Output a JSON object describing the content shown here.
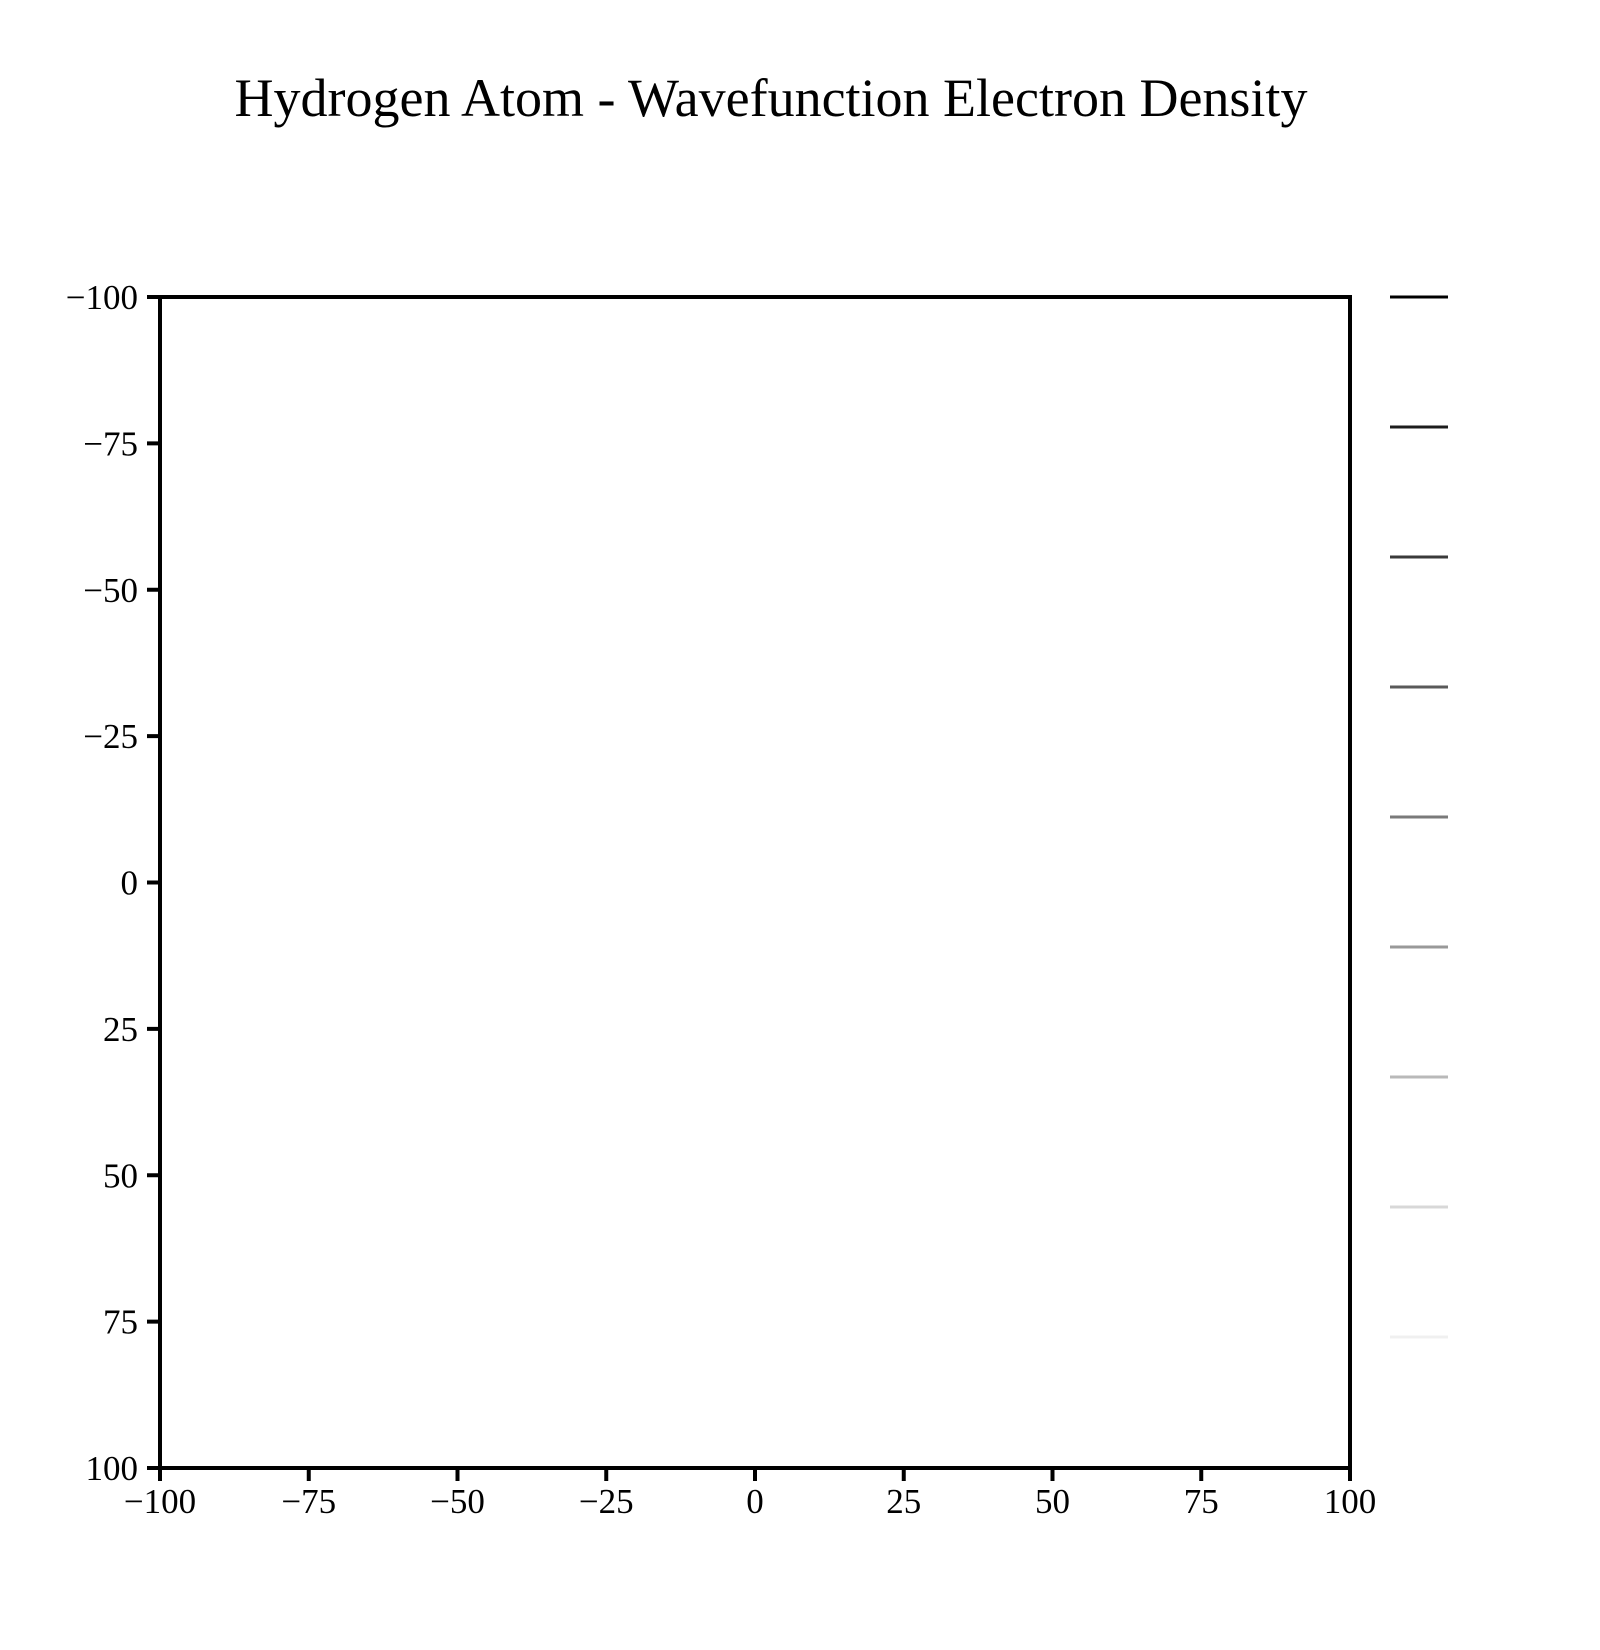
{
  "chart_data": {
    "type": "heatmap",
    "title": "Hydrogen Atom - Wavefunction Electron Density",
    "xlabel": "",
    "ylabel": "",
    "xlim": [
      -100,
      100
    ],
    "ylim": [
      -100,
      100
    ],
    "y_inverted": true,
    "x_ticks": [
      "−100",
      "−75",
      "−50",
      "−25",
      "0",
      "25",
      "50",
      "75",
      "100"
    ],
    "x_tick_values": [
      -100,
      -75,
      -50,
      -25,
      0,
      25,
      50,
      75,
      100
    ],
    "y_ticks": [
      "−100",
      "−75",
      "−50",
      "−25",
      "0",
      "25",
      "50",
      "75",
      "100"
    ],
    "y_tick_values": [
      -100,
      -75,
      -50,
      -25,
      0,
      25,
      50,
      75,
      100
    ],
    "grid": false,
    "legend": "right",
    "legend_levels": [
      {
        "color": "#000000"
      },
      {
        "color": "#1c1c1c"
      },
      {
        "color": "#3a3a3a"
      },
      {
        "color": "#5a5a5a"
      },
      {
        "color": "#7a7a7a"
      },
      {
        "color": "#999999"
      },
      {
        "color": "#b9b9b9"
      },
      {
        "color": "#d8d8d8"
      },
      {
        "color": "#f0f0f0"
      }
    ],
    "values": []
  }
}
